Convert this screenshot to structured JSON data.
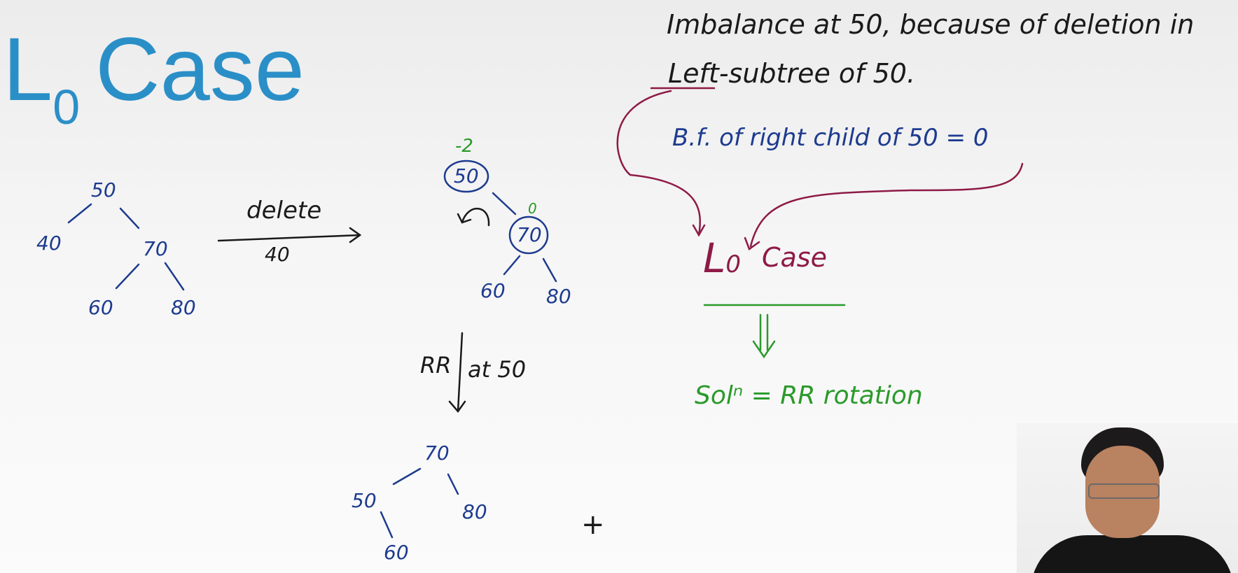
{
  "title": {
    "main": "L",
    "subscript": "0",
    "rest": "Case"
  },
  "tree_before": {
    "root": "50",
    "left": "40",
    "right": "70",
    "right_left": "60",
    "right_right": "80"
  },
  "delete_arrow": {
    "label_top": "delete",
    "label_bottom": "40"
  },
  "tree_after_delete": {
    "bf_root": "-2",
    "root": "50",
    "bf_right": "0",
    "right": "70",
    "right_left": "60",
    "right_right": "80"
  },
  "rotation_arrow": {
    "left_label": "RR",
    "right_label": "at 50"
  },
  "tree_rotated": {
    "root": "70",
    "left": "50",
    "right": "80",
    "left_right": "60"
  },
  "notes": {
    "line1": "Imbalance at 50, because of deletion in",
    "line2_left": "Left",
    "line2_rest": "-subtree of 50.",
    "bf_note": "B.f. of right child of 50 = 0",
    "case_label_main": "L",
    "case_label_sub": "0",
    "case_label_rest": "Case",
    "solution": "Solⁿ = RR rotation"
  },
  "cursor_symbol": "+",
  "colors": {
    "title": "#2b8fc7",
    "blue_ink": "#1d3b8f",
    "black_ink": "#1a1a1a",
    "green_ink": "#2a9a2a",
    "maroon_ink": "#8e1a46"
  }
}
